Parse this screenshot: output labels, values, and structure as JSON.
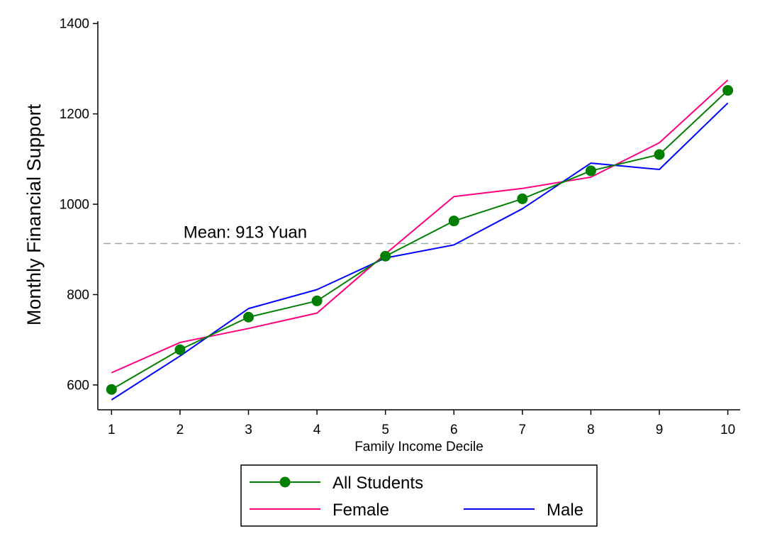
{
  "chart_data": {
    "type": "line",
    "xlabel": "Family Income Decile",
    "ylabel": "Monthly Financial Support",
    "x": [
      1,
      2,
      3,
      4,
      5,
      6,
      7,
      8,
      9,
      10
    ],
    "x_ticks": [
      "1",
      "2",
      "3",
      "4",
      "5",
      "6",
      "7",
      "8",
      "9",
      "10"
    ],
    "y_ticks": [
      "600",
      "800",
      "1000",
      "1200",
      "1400"
    ],
    "ylim": [
      545,
      1405
    ],
    "xlim": [
      0.8,
      10.18
    ],
    "series": [
      {
        "name": "All Students",
        "color": "#008000",
        "marker": "circle",
        "values": [
          590,
          678,
          750,
          786,
          885,
          963,
          1012,
          1074,
          1110,
          1252
        ]
      },
      {
        "name": "Female",
        "color": "#FF007F",
        "marker": "none",
        "values": [
          627,
          694,
          725,
          759,
          890,
          1017,
          1035,
          1060,
          1136,
          1275
        ]
      },
      {
        "name": "Male",
        "color": "#0000FF",
        "marker": "none",
        "values": [
          567,
          664,
          769,
          811,
          881,
          910,
          990,
          1091,
          1077,
          1224
        ]
      }
    ],
    "reference_line": {
      "value": 913,
      "label": "Mean: 913 Yuan",
      "color": "#9aa7a4",
      "style": "dashed"
    },
    "grid": false,
    "legend_position": "bottom"
  }
}
